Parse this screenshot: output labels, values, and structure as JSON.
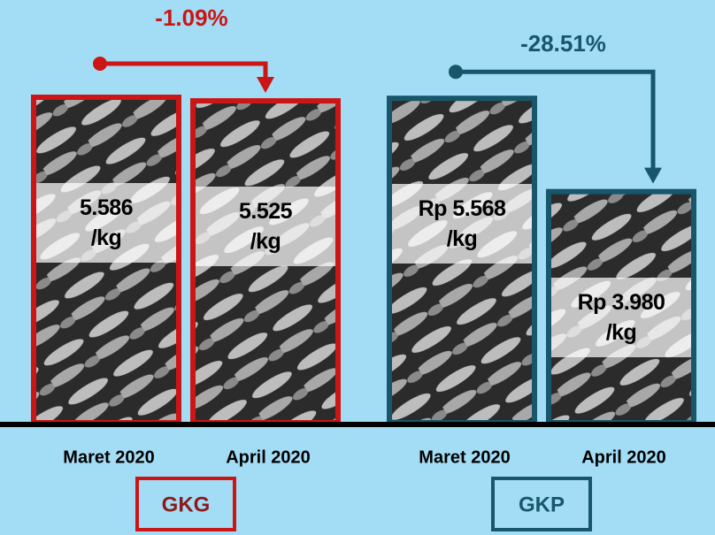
{
  "chart_data": [
    {
      "type": "bar",
      "group_label": "GKG",
      "annotation": "-1.09%",
      "color": "#cc1515",
      "categories": [
        "Maret 2020",
        "April  2020"
      ],
      "values": [
        5.586,
        5.525
      ],
      "value_labels": [
        "5.586\n/kg",
        "5.525\n/kg"
      ]
    },
    {
      "type": "bar",
      "group_label": "GKP",
      "annotation": "-28.51%",
      "color": "#17566b",
      "categories": [
        "Maret 2020",
        "April 2020"
      ],
      "values": [
        5.568,
        3.98
      ],
      "value_labels": [
        "Rp 5.568\n/kg",
        "Rp 3.980\n/kg"
      ]
    }
  ]
}
